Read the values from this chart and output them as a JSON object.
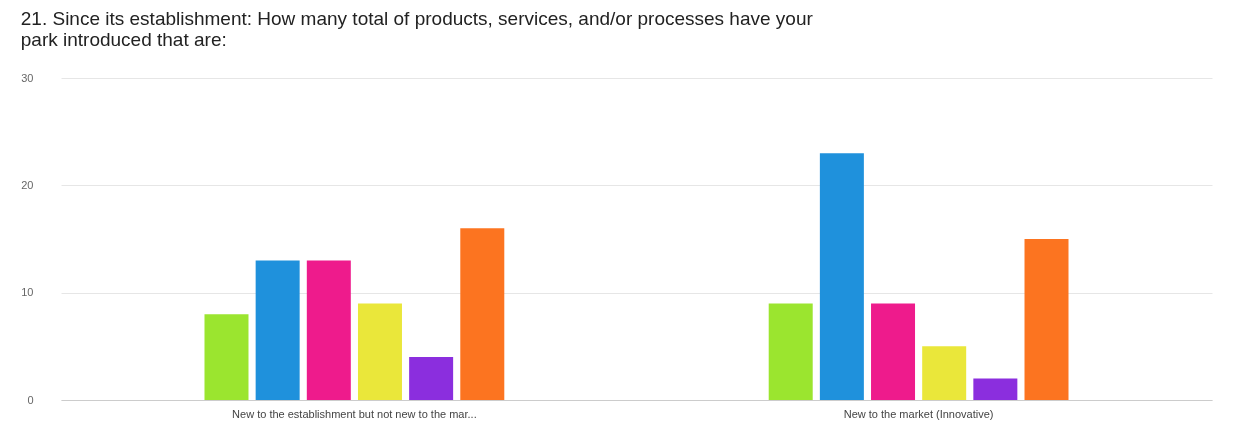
{
  "chart_data": {
    "type": "bar",
    "title": "21. Since its establishment: How many total of products, services, and/or processes have your\npark introduced that are:",
    "categories": [
      "New to the establishment but not new to the mar...",
      "New to the market (Innovative)"
    ],
    "series": [
      {
        "color": "#9be52f",
        "values": [
          8,
          9
        ]
      },
      {
        "color": "#1f91dc",
        "values": [
          13,
          23
        ]
      },
      {
        "color": "#ee1b8c",
        "values": [
          13,
          9
        ]
      },
      {
        "color": "#eae73a",
        "values": [
          9,
          5
        ]
      },
      {
        "color": "#8b2ede",
        "values": [
          4,
          2
        ]
      },
      {
        "color": "#fc7420",
        "values": [
          16,
          15
        ]
      }
    ],
    "ylim": [
      0,
      30
    ],
    "yticks": [
      0,
      10,
      20,
      30
    ],
    "grid": "y",
    "legend": false
  }
}
